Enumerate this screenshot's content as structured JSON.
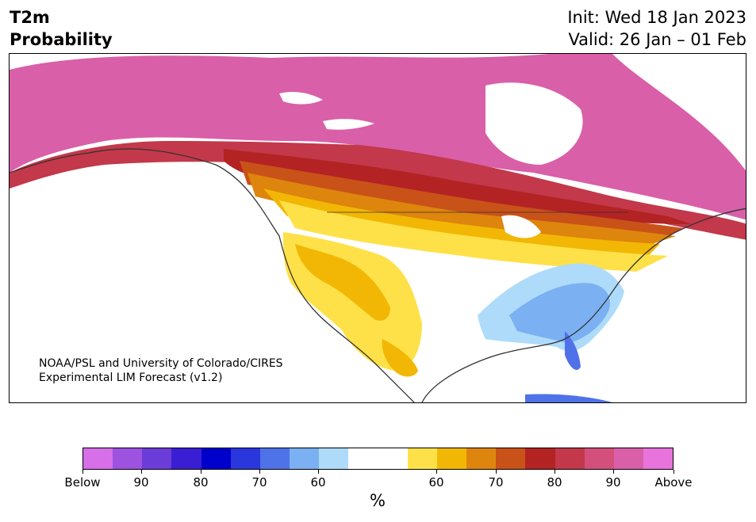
{
  "header": {
    "title_line1": "T2m",
    "title_line2": "Probability",
    "init": "Init: Wed 18 Jan 2023",
    "valid": "Valid: 26 Jan – 01 Feb"
  },
  "credit": {
    "line1": "NOAA/PSL and University of Colorado/CIRES",
    "line2": "Experimental LIM Forecast (v1.2)"
  },
  "colorbar": {
    "colors": [
      "#d66fe8",
      "#9e52e0",
      "#6b3cd8",
      "#3a1ed3",
      "#0000cd",
      "#2a37dc",
      "#4f72e8",
      "#7bb0f2",
      "#aedbfa",
      "#ffffff",
      "#ffffff",
      "#fee148",
      "#f2b705",
      "#de850d",
      "#c95218",
      "#b32323",
      "#c3384a",
      "#d3507c",
      "#d95fa8",
      "#e873dc"
    ],
    "tick_labels": [
      "Below",
      "90",
      "80",
      "70",
      "60",
      "60",
      "70",
      "80",
      "90",
      "Above"
    ],
    "unit": "%"
  }
}
